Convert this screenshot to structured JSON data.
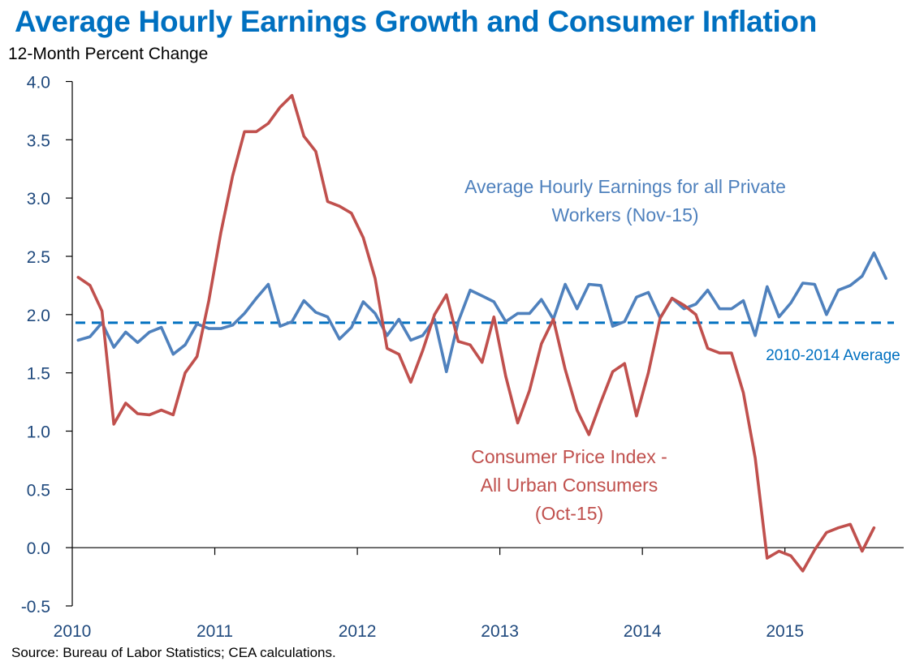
{
  "chart_data": {
    "type": "line",
    "title": "Average Hourly Earnings Growth and Consumer Inflation",
    "ylabel": "12-Month Percent Change",
    "xlabel": "",
    "source": "Source: Bureau of Labor Statistics; CEA calculations.",
    "ylim": [
      -0.5,
      4.0
    ],
    "yticks": [
      "4.0",
      "3.5",
      "3.0",
      "2.5",
      "2.0",
      "1.5",
      "1.0",
      "0.5",
      "0.0",
      "-0.5"
    ],
    "ytick_values": [
      4.0,
      3.5,
      3.0,
      2.5,
      2.0,
      1.5,
      1.0,
      0.5,
      0.0,
      -0.5
    ],
    "xticks": [
      "2010",
      "2011",
      "2012",
      "2013",
      "2014",
      "2015"
    ],
    "x_start": "2010-01",
    "x_frequency": "monthly",
    "x_categories_total": 70,
    "grid": false,
    "legend": "none (inline annotations)",
    "series": [
      {
        "name": "Average Hourly Earnings for all Private Workers (Nov-15)",
        "color": "#4F81BD",
        "values": [
          1.78,
          1.81,
          1.93,
          1.72,
          1.85,
          1.76,
          1.85,
          1.89,
          1.66,
          1.74,
          1.92,
          1.88,
          1.88,
          1.91,
          2.01,
          2.14,
          2.26,
          1.9,
          1.94,
          2.12,
          2.02,
          1.98,
          1.79,
          1.89,
          2.11,
          2.01,
          1.82,
          1.96,
          1.78,
          1.82,
          1.96,
          1.51,
          1.94,
          2.21,
          2.16,
          2.11,
          1.94,
          2.01,
          2.01,
          2.13,
          1.96,
          2.26,
          2.05,
          2.26,
          2.25,
          1.9,
          1.94,
          2.15,
          2.19,
          1.97,
          2.14,
          2.05,
          2.09,
          2.21,
          2.05,
          2.05,
          2.12,
          1.82,
          2.24,
          1.98,
          2.1,
          2.27,
          2.26,
          2.0,
          2.21,
          2.25,
          2.33,
          2.53,
          2.31
        ]
      },
      {
        "name": "Consumer Price Index - All Urban Consumers (Oct-15)",
        "color": "#C0504D",
        "values": [
          2.32,
          2.25,
          2.03,
          1.06,
          1.24,
          1.15,
          1.14,
          1.18,
          1.14,
          1.5,
          1.64,
          2.12,
          2.7,
          3.19,
          3.57,
          3.57,
          3.64,
          3.78,
          3.88,
          3.53,
          3.4,
          2.97,
          2.93,
          2.87,
          2.66,
          2.31,
          1.71,
          1.66,
          1.42,
          1.69,
          2.0,
          2.17,
          1.77,
          1.74,
          1.59,
          1.98,
          1.47,
          1.07,
          1.35,
          1.75,
          1.96,
          1.53,
          1.18,
          0.97,
          1.25,
          1.51,
          1.58,
          1.13,
          1.5,
          1.97,
          2.14,
          2.08,
          2.0,
          1.71,
          1.67,
          1.67,
          1.33,
          0.77,
          -0.09,
          -0.03,
          -0.07,
          -0.2,
          -0.02,
          0.13,
          0.17,
          0.2,
          -0.03,
          0.17
        ]
      }
    ],
    "reference_lines": [
      {
        "name": "2010-2014 Average",
        "value": 1.93,
        "style": "dashed",
        "color": "#0070C0"
      }
    ],
    "annotations": {
      "ahe": [
        "Average Hourly Earnings for all Private",
        "Workers (Nov-15)"
      ],
      "cpi": [
        "Consumer Price Index -",
        "All Urban Consumers",
        "(Oct-15)"
      ],
      "avg": "2010-2014 Average"
    }
  }
}
